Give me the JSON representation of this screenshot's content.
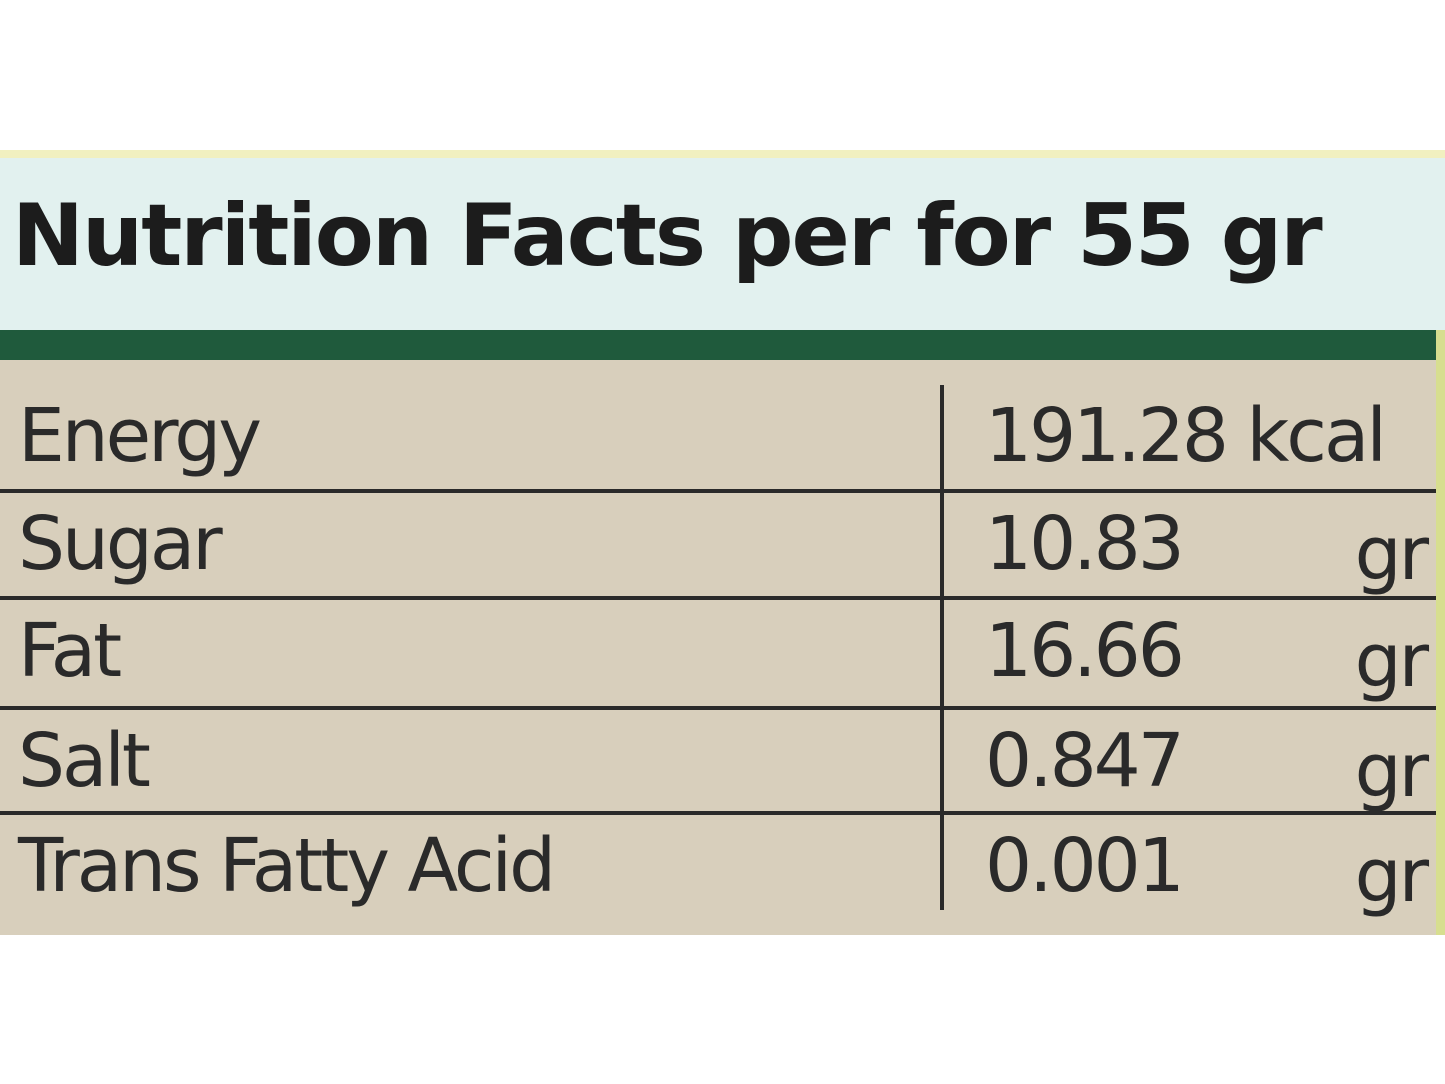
{
  "title": "Nutrition Facts per for 55 gr",
  "table": {
    "rows": [
      {
        "name": "Energy",
        "value": "191.28 kcal"
      },
      {
        "name": "Sugar",
        "value": "10.83",
        "unit": "gr"
      },
      {
        "name": "Fat",
        "value": "16.66",
        "unit": "gr"
      },
      {
        "name": "Salt",
        "value": "0.847",
        "unit": "gr"
      },
      {
        "name": "Trans Fatty Acid",
        "value": "0.001",
        "unit": "gr"
      }
    ]
  }
}
